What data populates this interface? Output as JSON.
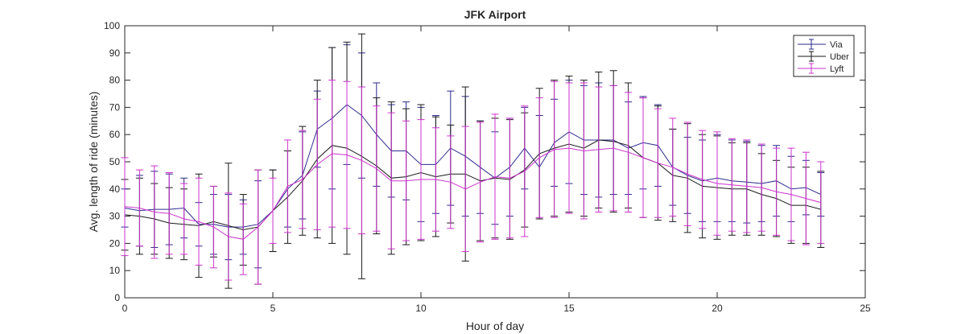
{
  "chart_data": {
    "type": "line",
    "title": "JFK Airport",
    "xlabel": "Hour of day",
    "ylabel": "Avg. length of ride (minutes)",
    "xlim": [
      0,
      25
    ],
    "ylim": [
      0,
      100
    ],
    "xticks": [
      "0",
      "5",
      "10",
      "15",
      "20",
      "25"
    ],
    "yticks": [
      "0",
      "10",
      "20",
      "30",
      "40",
      "50",
      "60",
      "70",
      "80",
      "90",
      "100"
    ],
    "grid": false,
    "legend_position": "top-right",
    "x": [
      0,
      0.5,
      1,
      1.5,
      2,
      2.5,
      3,
      3.5,
      4,
      4.5,
      5,
      5.5,
      6,
      6.5,
      7,
      7.5,
      8,
      8.5,
      9,
      9.5,
      10,
      10.5,
      11,
      11.5,
      12,
      12.5,
      13,
      13.5,
      14,
      14.5,
      15,
      15.5,
      16,
      16.5,
      17,
      17.5,
      18,
      18.5,
      19,
      19.5,
      20,
      20.5,
      21,
      21.5,
      22,
      22.5,
      23,
      23.5
    ],
    "series": [
      {
        "name": "Via",
        "color": "#2b2b8f",
        "values": [
          33,
          32,
          32.5,
          32.5,
          33,
          27,
          27,
          26,
          26,
          27,
          32,
          40,
          45,
          62,
          66,
          71,
          67,
          60,
          54,
          54,
          49,
          49,
          55,
          52,
          48,
          44,
          48,
          55,
          48,
          57,
          61,
          58,
          58,
          58,
          55,
          57,
          56,
          48,
          45,
          43,
          44,
          43,
          42.5,
          42,
          43,
          40,
          40.5,
          38
        ],
        "err": [
          7,
          13,
          14,
          13,
          11,
          8,
          11,
          12,
          10,
          16,
          15,
          14,
          16,
          14,
          26,
          22,
          23,
          19,
          17,
          18,
          21,
          18,
          21,
          22,
          17,
          17,
          18,
          15,
          19,
          16,
          19,
          20,
          21,
          20,
          17,
          17,
          15,
          14,
          14,
          15,
          16,
          15,
          15,
          14,
          13,
          12,
          10,
          8
        ]
      },
      {
        "name": "Uber",
        "color": "#1a1a1a",
        "values": [
          30.5,
          30,
          29,
          27.5,
          27,
          26.5,
          28,
          26.5,
          25,
          26,
          32,
          37,
          43,
          51,
          56,
          55,
          52,
          48.5,
          44,
          44.5,
          46,
          44.5,
          45.5,
          45.5,
          43,
          44,
          43.5,
          47,
          53,
          55,
          56.5,
          55,
          58,
          57.5,
          56,
          51.5,
          49.5,
          45,
          44,
          41,
          40.5,
          40,
          40,
          38,
          36.5,
          34,
          34,
          32.5
        ],
        "err": [
          13,
          14,
          13,
          13,
          13,
          19,
          13,
          23,
          13,
          21,
          15,
          17,
          20,
          29,
          36,
          39,
          45,
          25,
          28,
          25,
          25,
          22,
          18,
          32,
          22,
          22,
          22,
          21,
          24,
          25,
          25,
          25,
          25,
          26,
          23,
          22,
          21,
          17,
          20,
          19,
          19,
          17,
          17,
          15,
          14,
          14,
          14,
          14
        ]
      },
      {
        "name": "Lyft",
        "color": "#cc33cc",
        "values": [
          33.5,
          33,
          31.5,
          31,
          29,
          28,
          26,
          22.5,
          21.5,
          26,
          32,
          41,
          43.5,
          49,
          53,
          52.5,
          50.5,
          47.5,
          43,
          43,
          43.5,
          43.5,
          42.5,
          40,
          42.5,
          44.5,
          44,
          46.5,
          51.5,
          54.5,
          55,
          54,
          54.5,
          55,
          53.5,
          51.5,
          49.5,
          48,
          45.5,
          43.5,
          42,
          41.5,
          41,
          40.5,
          39,
          38,
          36.5,
          35
        ],
        "err": [
          18,
          14,
          17,
          15,
          13,
          16,
          15,
          16,
          13,
          21,
          12,
          17,
          18,
          24,
          27,
          27,
          27,
          23,
          25,
          22,
          22,
          19,
          17,
          23,
          22,
          23,
          22,
          24,
          22,
          25,
          24,
          25,
          23,
          23,
          22,
          22,
          20,
          18,
          19,
          18,
          19,
          17,
          17,
          16,
          16,
          17,
          17,
          15
        ]
      }
    ]
  }
}
